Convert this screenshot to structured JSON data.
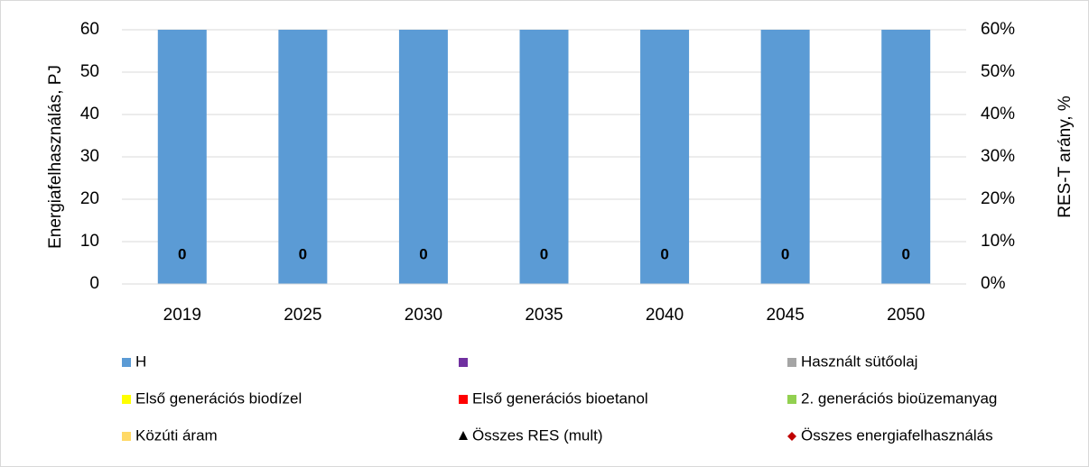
{
  "chart_data": {
    "type": "bar",
    "categories": [
      "2019",
      "2025",
      "2030",
      "2035",
      "2040",
      "2045",
      "2050"
    ],
    "ylabel": "Energiafelhasználás, PJ",
    "y2label": "RES-T arány, %",
    "ylim": [
      0,
      60
    ],
    "yticks": [
      0,
      10,
      20,
      30,
      40,
      50,
      60
    ],
    "y2lim": [
      0,
      60
    ],
    "y2ticks": [
      {
        "value": 0,
        "label": "0%"
      },
      {
        "value": 10,
        "label": "10%"
      },
      {
        "value": 20,
        "label": "20%"
      },
      {
        "value": 30,
        "label": "30%"
      },
      {
        "value": 40,
        "label": "40%"
      },
      {
        "value": 50,
        "label": "50%"
      },
      {
        "value": 60,
        "label": "60%"
      }
    ],
    "grid": true,
    "stacked": true,
    "legend": "bottom",
    "series": [
      {
        "name": "H",
        "color": "#5b9bd5",
        "values": [
          60,
          60,
          60,
          60,
          60,
          60,
          60
        ]
      },
      {
        "name": null,
        "color": "#7030a0",
        "values": [
          0,
          0,
          0,
          0,
          0,
          0,
          0
        ]
      },
      {
        "name": "Használt sütőolaj",
        "color": "#a5a5a5",
        "values": [
          0,
          0,
          0,
          0,
          0,
          0,
          0
        ]
      },
      {
        "name": "Első generációs biodízel",
        "color": "#ffff00",
        "values": [
          0,
          0,
          0,
          0,
          0,
          0,
          0
        ]
      },
      {
        "name": "Első generációs bioetanol",
        "color": "#ff0000",
        "values": [
          0,
          0,
          0,
          0,
          0,
          0,
          0
        ]
      },
      {
        "name": "2. generációs bioüzemanyag",
        "color": "#92d050",
        "values": [
          0,
          0,
          0,
          0,
          0,
          0,
          0
        ]
      },
      {
        "name": "Közúti áram",
        "color": "#ffd966",
        "values": [
          0,
          0,
          0,
          0,
          0,
          0,
          0
        ]
      },
      {
        "name": "Összes RES (mult)",
        "color": "#000000",
        "type": "scatter",
        "marker": "triangle",
        "axis": "y2",
        "values": [
          0,
          0,
          0,
          0,
          0,
          0,
          0
        ],
        "data_labels": true
      },
      {
        "name": "Összes energiafelhasználás",
        "color": "#c00000",
        "type": "scatter",
        "marker": "diamond",
        "values": [
          0,
          0,
          0,
          0,
          0,
          0,
          0
        ]
      }
    ]
  }
}
